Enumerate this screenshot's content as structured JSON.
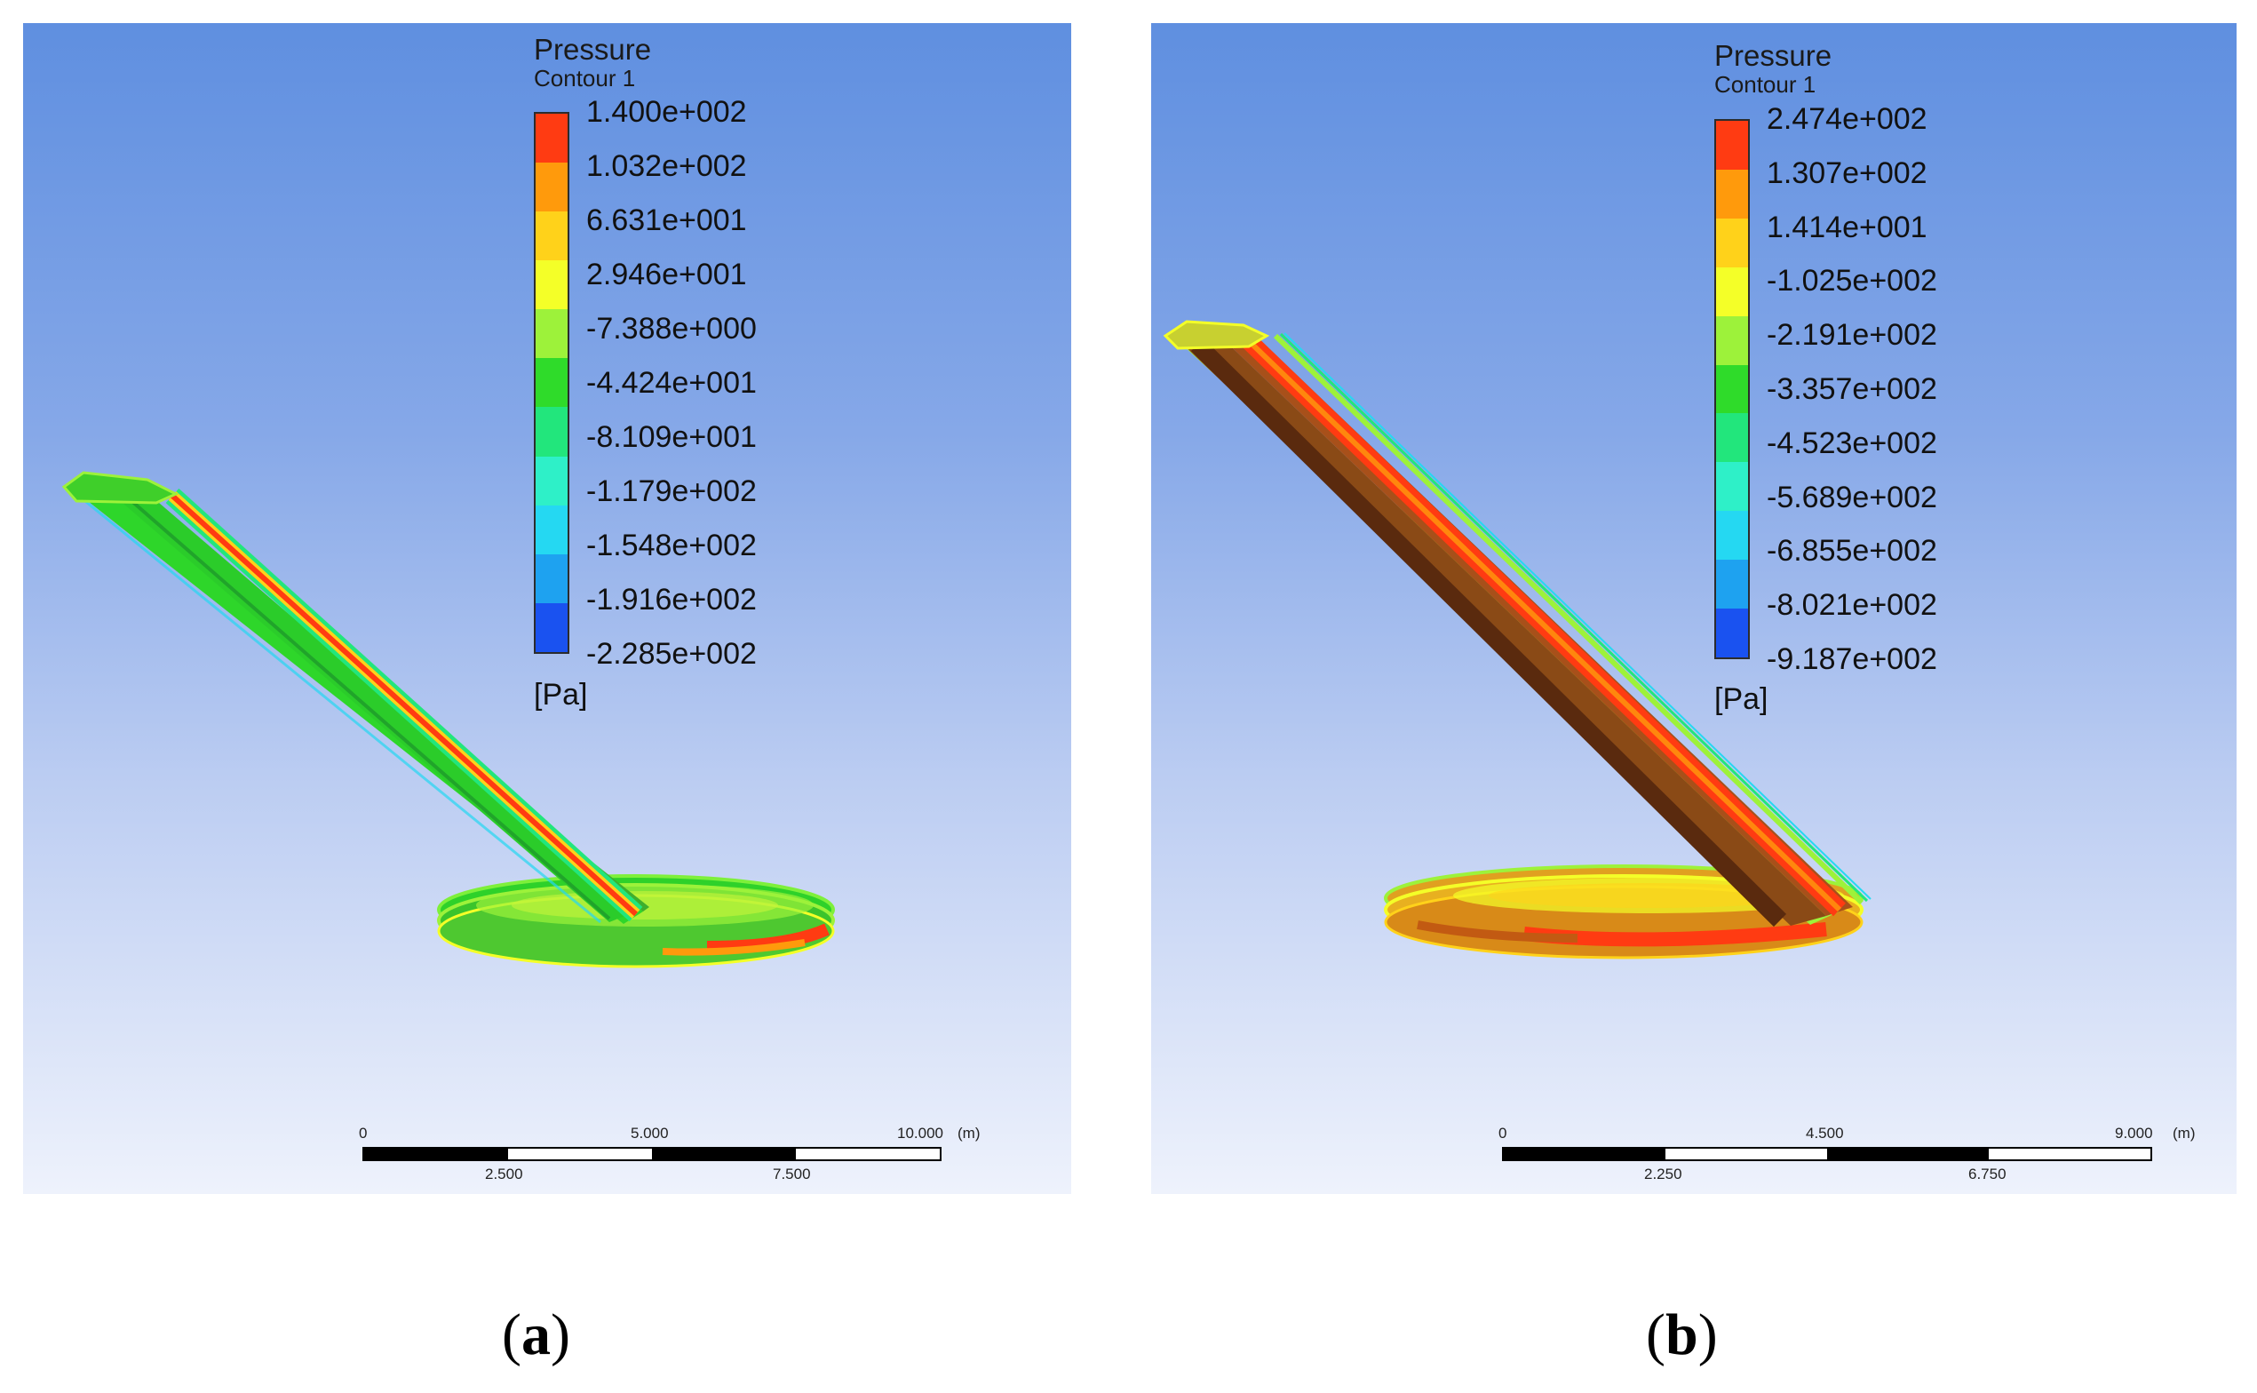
{
  "panels": [
    {
      "legend": {
        "title": "Pressure",
        "subtitle": "Contour 1",
        "ticks": [
          "1.400e+002",
          "1.032e+002",
          "6.631e+001",
          "2.946e+001",
          "-7.388e+000",
          "-4.424e+001",
          "-8.109e+001",
          "-1.179e+002",
          "-1.548e+002",
          "-1.916e+002",
          "-2.285e+002"
        ],
        "unit": "[Pa]",
        "colors": [
          "#ff3b12",
          "#ff9a0c",
          "#ffd21a",
          "#f4ff28",
          "#9df23a",
          "#2fdb2a",
          "#22e67c",
          "#2ef0c8",
          "#25d8f2",
          "#1ea2f0",
          "#1a52f0"
        ]
      },
      "scale": {
        "labels_top": [
          "0",
          "5.000",
          "10.000",
          "(m)"
        ],
        "labels_bottom": [
          "2.500",
          "7.500"
        ]
      },
      "caption": {
        "open": "(",
        "letter": "a",
        "close": ")"
      }
    },
    {
      "legend": {
        "title": "Pressure",
        "subtitle": "Contour 1",
        "ticks": [
          "2.474e+002",
          "1.307e+002",
          "1.414e+001",
          "-1.025e+002",
          "-2.191e+002",
          "-3.357e+002",
          "-4.523e+002",
          "-5.689e+002",
          "-6.855e+002",
          "-8.021e+002",
          "-9.187e+002"
        ],
        "unit": "[Pa]",
        "colors": [
          "#ff3b12",
          "#ff9a0c",
          "#ffd21a",
          "#f4ff28",
          "#9df23a",
          "#2fdb2a",
          "#22e67c",
          "#2ef0c8",
          "#25d8f2",
          "#1ea2f0",
          "#1a52f0"
        ]
      },
      "scale": {
        "labels_top": [
          "0",
          "4.500",
          "9.000",
          "(m)"
        ],
        "labels_bottom": [
          "2.250",
          "6.750"
        ]
      },
      "caption": {
        "open": "(",
        "letter": "b",
        "close": ")"
      }
    }
  ]
}
